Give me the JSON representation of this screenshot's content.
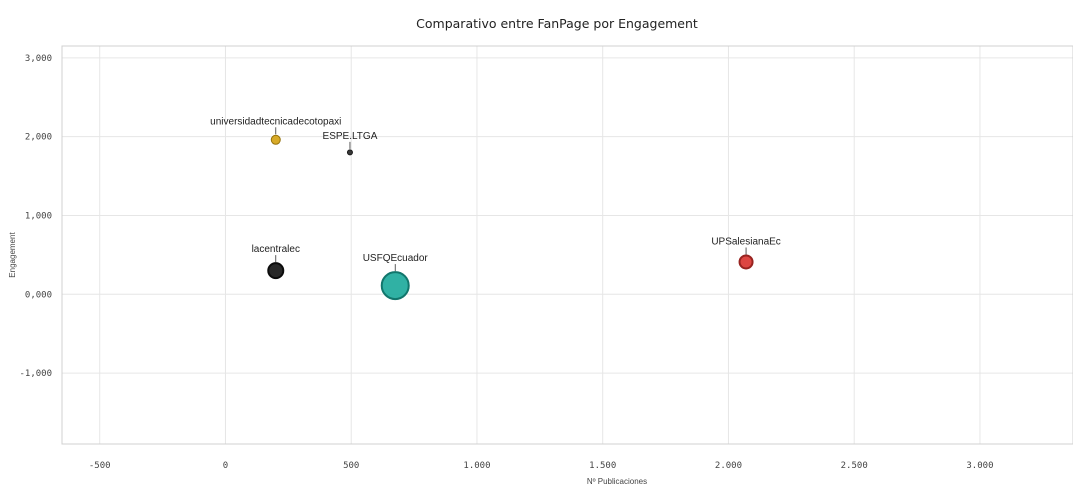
{
  "chart_data": {
    "type": "scatter",
    "title": "Comparativo entre FanPage por Engagement",
    "xlabel": "Nº Publicaciones",
    "ylabel": "Engagement",
    "xlim": [
      -650,
      3370
    ],
    "ylim": [
      -1900,
      3150
    ],
    "x_ticks": [
      -500,
      0,
      500,
      1000,
      1500,
      2000,
      2500,
      3000
    ],
    "x_tick_labels": [
      "-500",
      "0",
      "500",
      "1.000",
      "1.500",
      "2.000",
      "2.500",
      "3.000"
    ],
    "y_ticks": [
      3000,
      2000,
      1000,
      0,
      -1000
    ],
    "y_tick_labels": [
      "3,000",
      "2,000",
      "1,000",
      "0,000",
      "-1,000"
    ],
    "grid": true,
    "points": [
      {
        "label": "universidadtecnicadecotopaxi",
        "x": 200,
        "y": 1960,
        "size": 3,
        "color": "#d4a10f"
      },
      {
        "label": "ESPE.LTGA",
        "x": 495,
        "y": 1800,
        "size": 1,
        "color": "#222222"
      },
      {
        "label": "lacentralec",
        "x": 200,
        "y": 300,
        "size": 6,
        "color": "#111111"
      },
      {
        "label": "USFQEcuador",
        "x": 675,
        "y": 110,
        "size": 12,
        "color": "#1aa89a"
      },
      {
        "label": "UPSalesianaEc",
        "x": 2070,
        "y": 410,
        "size": 5,
        "color": "#d9322e"
      }
    ]
  }
}
